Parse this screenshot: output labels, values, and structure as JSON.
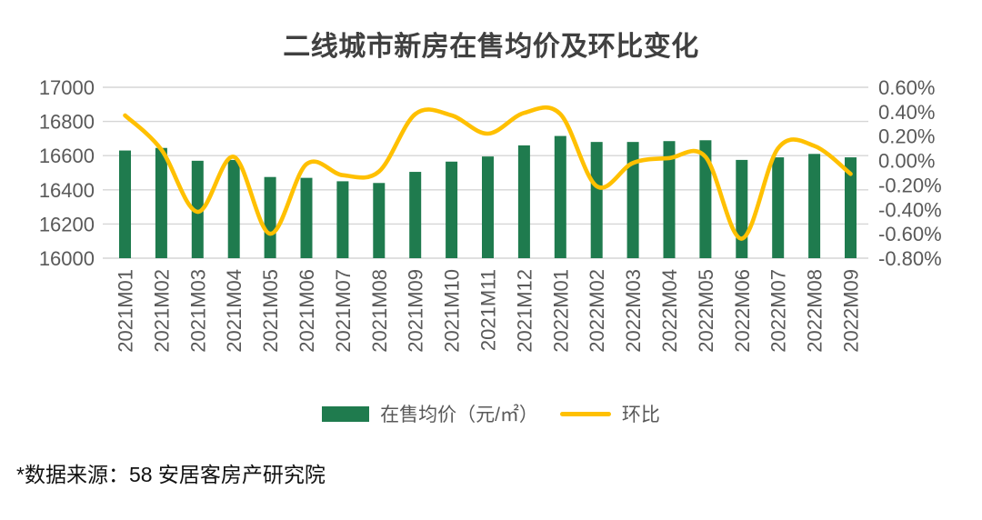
{
  "title": "二线城市新房在售均价及环比变化",
  "footnote": "*数据来源：58 安居客房产研究院",
  "legend": {
    "bar_label": "在售均价（元/㎡）",
    "line_label": "环比"
  },
  "colors": {
    "bar": "#1F7B4E",
    "line": "#FFC000",
    "grid": "#D6D6D6",
    "axis_text": "#595959",
    "title_text": "#404040"
  },
  "chart_data": {
    "type": "bar",
    "subtype": "bar+line-combo",
    "title": "二线城市新房在售均价及环比变化",
    "categories": [
      "2021M01",
      "2021M02",
      "2021M03",
      "2021M04",
      "2021M05",
      "2021M06",
      "2021M07",
      "2021M08",
      "2021M09",
      "2021M10",
      "2021M11",
      "2021M12",
      "2022M01",
      "2022M02",
      "2022M03",
      "2022M04",
      "2022M05",
      "2022M06",
      "2022M07",
      "2022M08",
      "2022M09"
    ],
    "series": [
      {
        "name": "在售均价（元/㎡）",
        "type": "bar",
        "axis": "left",
        "values": [
          16630,
          16645,
          16570,
          16575,
          16475,
          16470,
          16450,
          16440,
          16505,
          16565,
          16595,
          16660,
          16715,
          16680,
          16680,
          16685,
          16690,
          16575,
          16590,
          16610,
          16590
        ]
      },
      {
        "name": "环比",
        "type": "line",
        "axis": "right",
        "unit": "%",
        "values": [
          0.37,
          0.09,
          -0.42,
          0.03,
          -0.6,
          -0.03,
          -0.12,
          -0.09,
          0.38,
          0.37,
          0.22,
          0.39,
          0.38,
          -0.21,
          -0.02,
          0.02,
          0.03,
          -0.64,
          0.1,
          0.12,
          -0.11
        ]
      }
    ],
    "left_axis": {
      "min": 16000,
      "max": 17000,
      "step": 200,
      "tick_labels": [
        "17000",
        "16800",
        "16600",
        "16400",
        "16200",
        "16000"
      ]
    },
    "right_axis": {
      "min": -0.8,
      "max": 0.6,
      "step": 0.2,
      "tick_labels": [
        "0.60%",
        "0.40%",
        "0.20%",
        "0.00%",
        "-0.20%",
        "-0.40%",
        "-0.60%",
        "-0.80%"
      ]
    },
    "grid": "horizontal-only",
    "legend_position": "bottom"
  }
}
